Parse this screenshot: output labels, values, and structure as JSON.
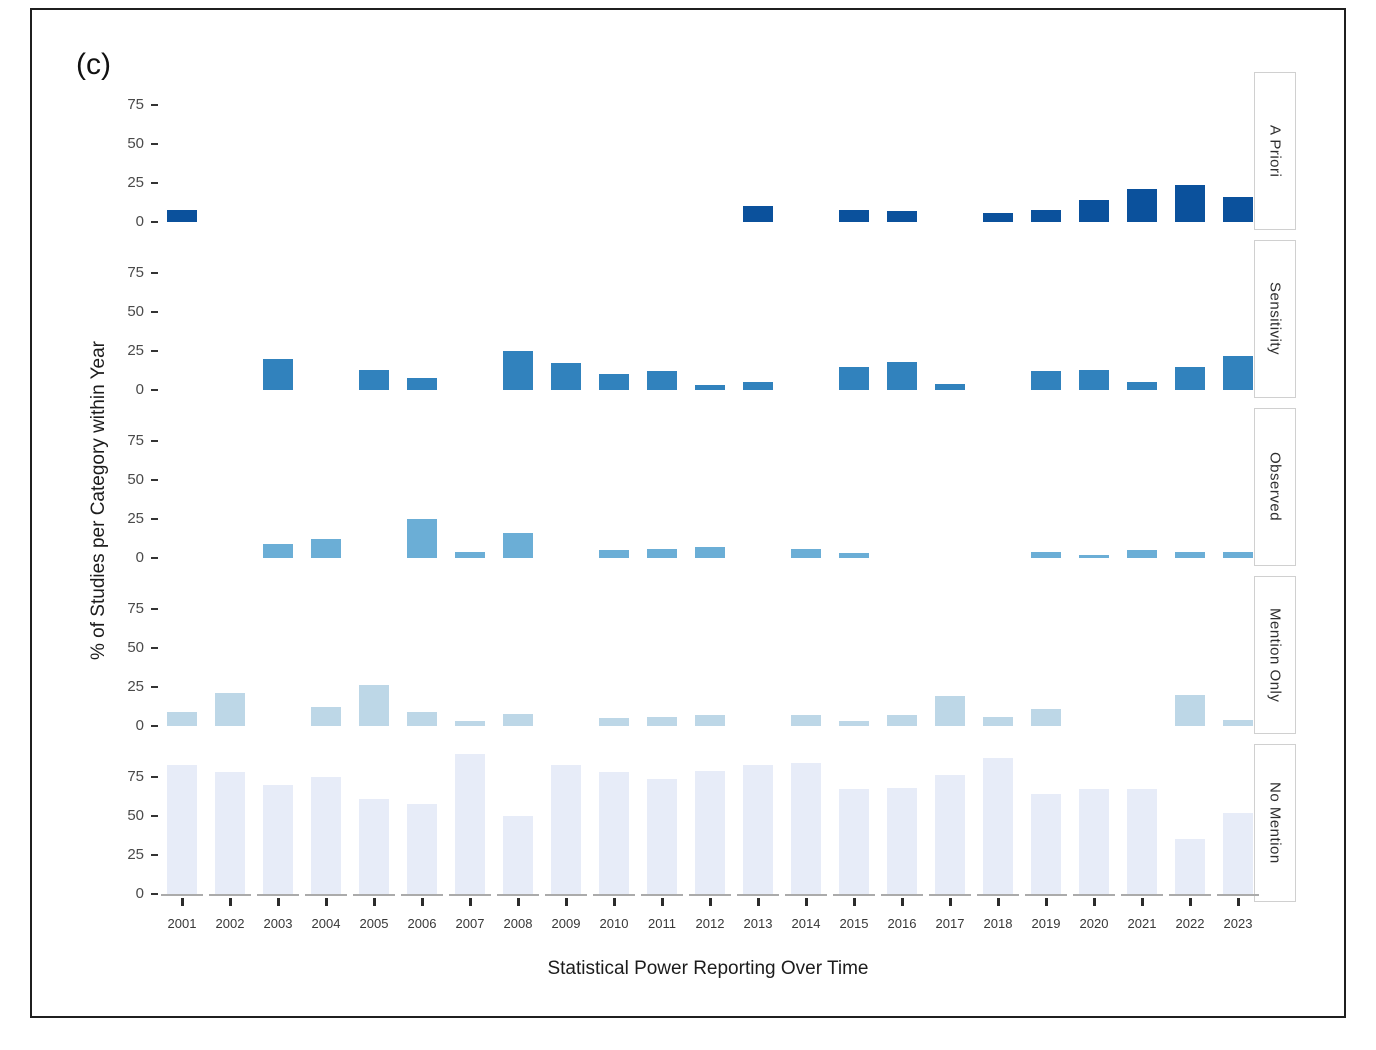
{
  "figure": {
    "panel_tag": "(c)",
    "xlabel": "Statistical Power Reporting Over Time",
    "ylabel": "% of Studies per Category within Year"
  },
  "chart_data": {
    "type": "bar",
    "layout": "faceted-rows",
    "grid": false,
    "legend": "none",
    "x": [
      "2001",
      "2002",
      "2003",
      "2004",
      "2005",
      "2006",
      "2007",
      "2008",
      "2009",
      "2010",
      "2011",
      "2012",
      "2013",
      "2014",
      "2015",
      "2016",
      "2017",
      "2018",
      "2019",
      "2020",
      "2021",
      "2022",
      "2023"
    ],
    "y_ticks": [
      0,
      25,
      50,
      75
    ],
    "ylim": [
      0,
      100
    ],
    "xlabel": "Statistical Power Reporting Over Time",
    "ylabel": "% of Studies per Category within Year",
    "facets": [
      {
        "label": "A Priori",
        "color": "#0b519c",
        "values": [
          8,
          0,
          0,
          0,
          0,
          0,
          0,
          0,
          0,
          0,
          0,
          0,
          10,
          0,
          8,
          7,
          0,
          6,
          8,
          14,
          21,
          24,
          16
        ]
      },
      {
        "label": "Sensitivity",
        "color": "#3182bd",
        "values": [
          0,
          0,
          20,
          0,
          13,
          8,
          0,
          25,
          17,
          10,
          12,
          3,
          5,
          0,
          15,
          18,
          4,
          0,
          12,
          13,
          5,
          15,
          22
        ]
      },
      {
        "label": "Observed",
        "color": "#6baed6",
        "values": [
          0,
          0,
          9,
          12,
          0,
          25,
          4,
          16,
          0,
          5,
          6,
          7,
          0,
          6,
          3,
          0,
          0,
          0,
          4,
          2,
          5,
          4,
          4
        ]
      },
      {
        "label": "Mention Only",
        "color": "#bdd7e7",
        "values": [
          9,
          21,
          0,
          12,
          26,
          9,
          3,
          8,
          0,
          5,
          6,
          7,
          0,
          7,
          3,
          7,
          19,
          6,
          11,
          0,
          0,
          20,
          4
        ]
      },
      {
        "label": "No Mention",
        "color": "#e7ecf8",
        "values": [
          83,
          78,
          70,
          75,
          61,
          58,
          90,
          50,
          83,
          78,
          74,
          79,
          83,
          84,
          67,
          68,
          76,
          87,
          64,
          67,
          67,
          35,
          52
        ]
      }
    ]
  }
}
